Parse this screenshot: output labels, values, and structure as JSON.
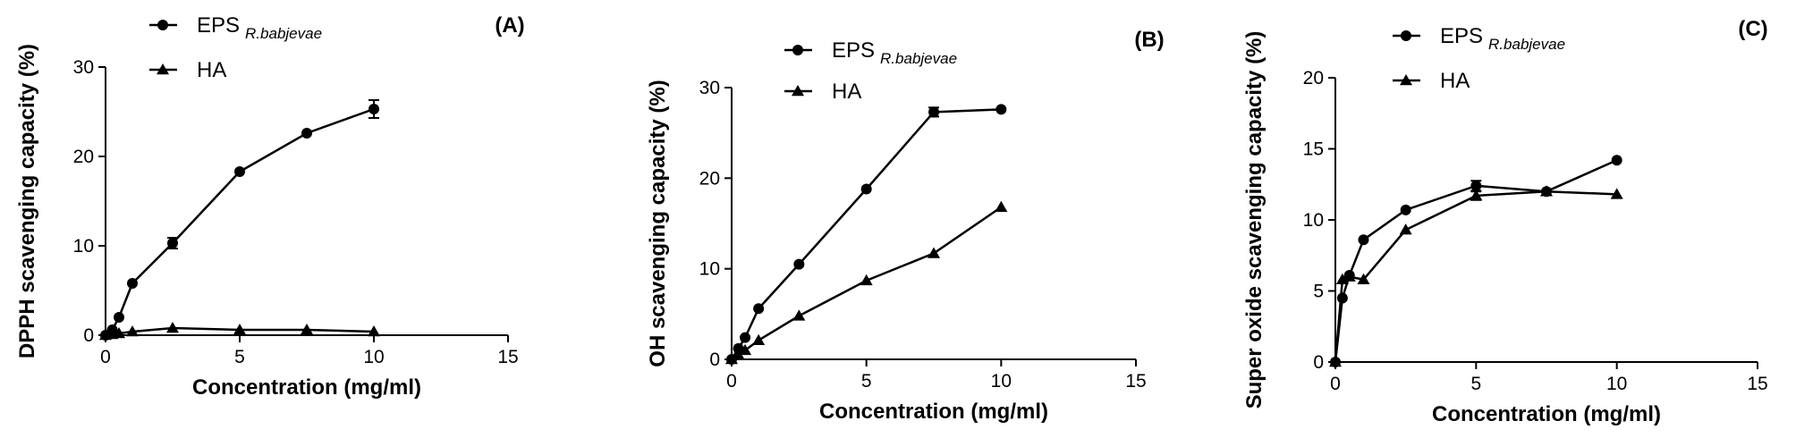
{
  "chart_data": [
    {
      "type": "line",
      "panel_label": "(A)",
      "xlabel": "Concentration (mg/ml)",
      "ylabel": "DPPH scavenging capacity (%)",
      "xlim": [
        0,
        15
      ],
      "ylim": [
        0,
        30
      ],
      "xticks": [
        0,
        5,
        10,
        15
      ],
      "yticks": [
        0,
        10,
        20,
        30
      ],
      "legend_position": "top-left",
      "series": [
        {
          "name": "EPS",
          "name_subscript": "R.babjevae",
          "marker": "circle",
          "x": [
            0,
            0.25,
            0.5,
            1,
            2.5,
            5,
            7.5,
            10
          ],
          "y": [
            0,
            0.6,
            2.0,
            5.8,
            10.3,
            18.3,
            22.6,
            25.3
          ],
          "err": [
            0,
            0,
            0,
            0,
            0.6,
            0,
            0,
            1.0
          ]
        },
        {
          "name": "HA",
          "marker": "triangle",
          "x": [
            0,
            0.25,
            0.5,
            1,
            2.5,
            5,
            7.5,
            10
          ],
          "y": [
            0,
            0.1,
            0.2,
            0.4,
            0.8,
            0.6,
            0.6,
            0.4
          ],
          "err": [
            0,
            0,
            0,
            0,
            0,
            0,
            0,
            0
          ]
        }
      ]
    },
    {
      "type": "line",
      "panel_label": "(B)",
      "xlabel": "Concentration (mg/ml)",
      "ylabel": "OH scavenging capacity (%)",
      "xlim": [
        0,
        15
      ],
      "ylim": [
        0,
        30
      ],
      "xticks": [
        0,
        5,
        10,
        15
      ],
      "yticks": [
        0,
        10,
        20,
        30
      ],
      "legend_position": "top-left",
      "series": [
        {
          "name": "EPS",
          "name_subscript": "R.babjevae",
          "marker": "circle",
          "x": [
            0,
            0.25,
            0.5,
            1,
            2.5,
            5,
            7.5,
            10
          ],
          "y": [
            0,
            1.2,
            2.4,
            5.6,
            10.5,
            18.8,
            27.3,
            27.6
          ],
          "err": [
            0,
            0,
            0,
            0,
            0,
            0,
            0.5,
            0
          ]
        },
        {
          "name": "HA",
          "marker": "triangle",
          "x": [
            0,
            0.25,
            0.5,
            1,
            2.5,
            5,
            7.5,
            10
          ],
          "y": [
            0,
            0.5,
            1.0,
            2.1,
            4.8,
            8.7,
            11.7,
            16.8
          ],
          "err": [
            0,
            0,
            0,
            0,
            0,
            0,
            0,
            0
          ]
        }
      ]
    },
    {
      "type": "line",
      "panel_label": "(C)",
      "xlabel": "Concentration (mg/ml)",
      "ylabel": "Super oxide scavenging capacity (%)",
      "xlim": [
        0,
        15
      ],
      "ylim": [
        0,
        20
      ],
      "xticks": [
        0,
        5,
        10,
        15
      ],
      "yticks": [
        0,
        5,
        10,
        15,
        20
      ],
      "legend_position": "top-left",
      "series": [
        {
          "name": "EPS",
          "name_subscript": "R.babjevae",
          "marker": "circle",
          "x": [
            0,
            0.25,
            0.5,
            1,
            2.5,
            5,
            7.5,
            10
          ],
          "y": [
            0,
            4.5,
            6.1,
            8.6,
            10.7,
            12.4,
            12.0,
            14.2
          ],
          "err": [
            0,
            0,
            0,
            0,
            0,
            0.35,
            0,
            0
          ]
        },
        {
          "name": "HA",
          "marker": "triangle",
          "x": [
            0,
            0.25,
            0.5,
            1,
            2.5,
            5,
            7.5,
            10
          ],
          "y": [
            0,
            5.8,
            6.0,
            5.8,
            9.3,
            11.7,
            12.0,
            11.8
          ],
          "err": [
            0,
            0,
            0,
            0,
            0,
            0.3,
            0,
            0
          ]
        }
      ]
    }
  ]
}
